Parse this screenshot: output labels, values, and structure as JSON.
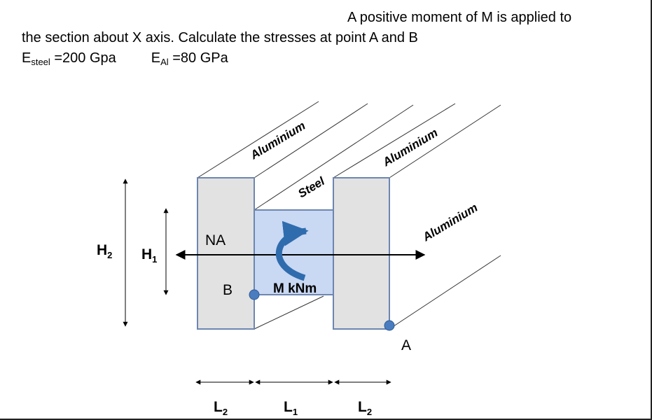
{
  "problem": {
    "line1": "A positive moment of M is applied to",
    "line2": "the section about X axis. Calculate the stresses at point A and B",
    "e_steel_prefix": "E",
    "e_steel_sub": "steel",
    "e_steel_value": " =200 Gpa",
    "e_al_prefix": "E",
    "e_al_sub": "Al",
    "e_al_value": " =80 GPa"
  },
  "diagram": {
    "material_top_left": "Aluminium",
    "material_top_right": "Aluminium",
    "material_middle": "Steel",
    "material_right_side": "Aluminium",
    "neutral_axis": "NA",
    "moment": "M kNm",
    "point_a": "A",
    "point_b": "B",
    "height_outer_main": "H",
    "height_outer_sub": "2",
    "height_inner_main": "H",
    "height_inner_sub": "1",
    "width_left_main": "L",
    "width_left_sub": "2",
    "width_middle_main": "L",
    "width_middle_sub": "1",
    "width_right_main": "L",
    "width_right_sub": "2"
  },
  "colors": {
    "aluminium_fill": "#e2e2e2",
    "steel_fill": "#c9d8f3",
    "outline": "#6d86b0",
    "moment_arrow": "#2f6cae",
    "point_marker": "#4a7cc0"
  }
}
